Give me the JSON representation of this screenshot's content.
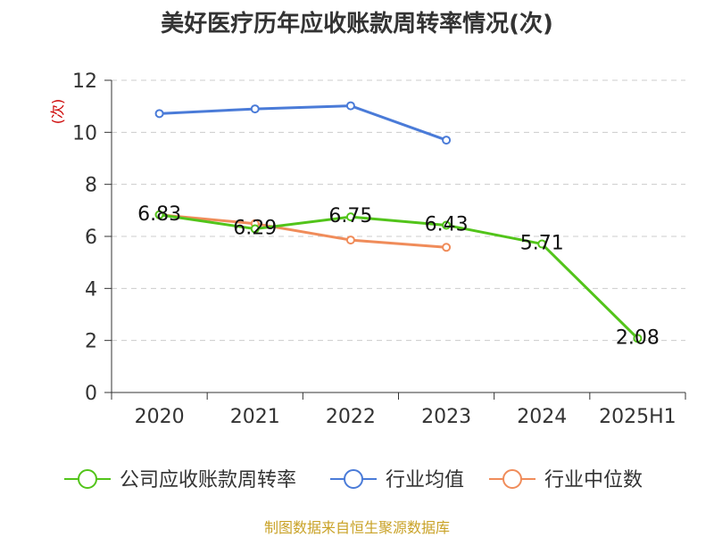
{
  "chart_data": {
    "type": "line",
    "title": "美好医疗历年应收账款周转率情况(次)",
    "ylabel": "(次)",
    "categories": [
      "2020",
      "2021",
      "2022",
      "2023",
      "2024",
      "2025H1"
    ],
    "ylim": [
      0,
      12
    ],
    "yticks": [
      "0",
      "2",
      "4",
      "6",
      "8",
      "10",
      "12"
    ],
    "grid": true,
    "legend_position": "bottom",
    "series": [
      {
        "name": "公司应收账款周转率",
        "color": "#52c41a",
        "values": [
          6.83,
          6.29,
          6.75,
          6.43,
          5.71,
          2.08
        ],
        "labels": [
          "6.83",
          "6.29",
          "6.75",
          "6.43",
          "5.71",
          "2.08"
        ]
      },
      {
        "name": "行业均值",
        "color": "#4a7bd8",
        "values": [
          10.72,
          10.9,
          11.02,
          9.7,
          null,
          null
        ]
      },
      {
        "name": "行业中位数",
        "color": "#f08c5a",
        "values": [
          6.83,
          6.49,
          5.86,
          5.58,
          null,
          null
        ]
      }
    ]
  },
  "source": "制图数据来自恒生聚源数据库"
}
